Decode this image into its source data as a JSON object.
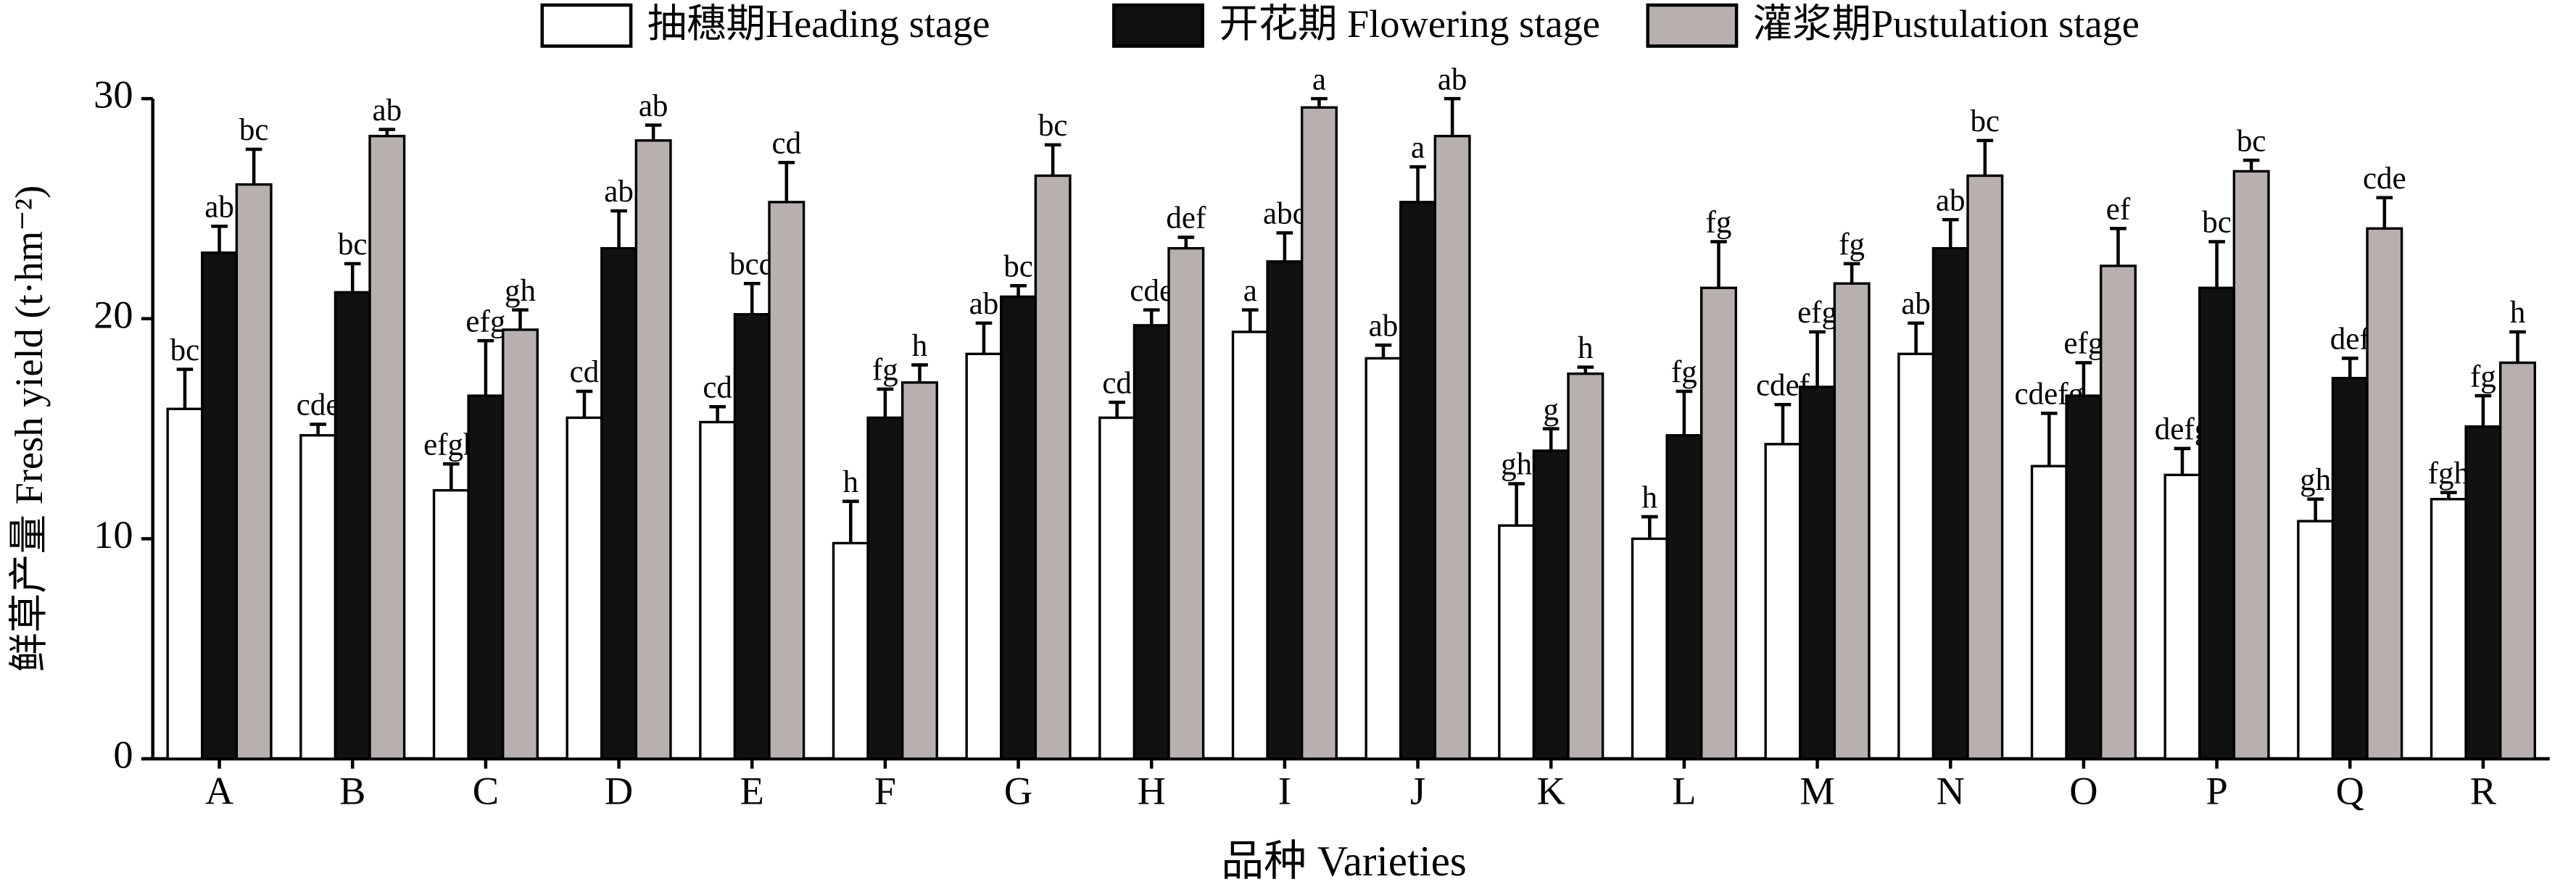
{
  "chart_data": {
    "type": "bar",
    "x_label": "品种 Varieties",
    "y_label": "鲜草产量 Fresh yield (t·hm⁻²)",
    "categories": [
      "A",
      "B",
      "C",
      "D",
      "E",
      "F",
      "G",
      "H",
      "I",
      "J",
      "K",
      "L",
      "M",
      "N",
      "O",
      "P",
      "Q",
      "R"
    ],
    "ylim": [
      0,
      30
    ],
    "yticks": [
      0,
      10,
      20,
      30
    ],
    "grid": false,
    "legend": "top",
    "series": [
      {
        "name": "抽穗期Heading stage",
        "color": "#ffffff",
        "values": [
          15.9,
          14.7,
          12.2,
          15.5,
          15.3,
          9.8,
          18.4,
          15.5,
          19.4,
          18.2,
          10.6,
          10.0,
          14.3,
          18.4,
          13.3,
          12.9,
          10.8,
          11.8
        ],
        "errors": [
          1.8,
          0.5,
          1.2,
          1.2,
          0.7,
          1.9,
          1.4,
          0.7,
          1.0,
          0.6,
          1.9,
          1.0,
          1.8,
          1.4,
          2.4,
          1.2,
          1.0,
          0.3
        ],
        "letters": [
          "bc",
          "cde",
          "efgh",
          "cd",
          "cd",
          "h",
          "ab",
          "cd",
          "a",
          "ab",
          "gh",
          "h",
          "cdef",
          "ab",
          "cdefg",
          "defg",
          "gh",
          "fgh"
        ]
      },
      {
        "name": "开花期 Flowering stage",
        "color": "#111111",
        "values": [
          23.0,
          21.2,
          16.5,
          23.2,
          20.2,
          15.5,
          21.0,
          19.7,
          22.6,
          25.3,
          14.0,
          14.7,
          16.9,
          23.2,
          16.5,
          21.4,
          17.3,
          15.1
        ],
        "errors": [
          1.2,
          1.3,
          2.5,
          1.7,
          1.4,
          1.3,
          0.5,
          0.7,
          1.3,
          1.6,
          1.0,
          2.0,
          2.5,
          1.3,
          1.5,
          2.1,
          0.9,
          1.4
        ],
        "letters": [
          "ab",
          "bc",
          "efg",
          "ab",
          "bcd",
          "fg",
          "bc",
          "cde",
          "abc",
          "a",
          "g",
          "fg",
          "efg",
          "ab",
          "efg",
          "bc",
          "def",
          "fg"
        ]
      },
      {
        "name": "灌浆期Pustulation stage",
        "color": "#b7b0ae",
        "values": [
          26.1,
          28.3,
          19.5,
          28.1,
          25.3,
          17.1,
          26.5,
          23.2,
          29.6,
          28.3,
          17.5,
          21.4,
          21.6,
          26.5,
          22.4,
          26.7,
          24.1,
          18.0
        ],
        "errors": [
          1.6,
          0.3,
          0.9,
          0.7,
          1.8,
          0.8,
          1.4,
          0.5,
          0.4,
          1.7,
          0.3,
          2.1,
          0.9,
          1.6,
          1.7,
          0.5,
          1.4,
          1.4
        ],
        "letters": [
          "bc",
          "ab",
          "gh",
          "ab",
          "cd",
          "h",
          "bc",
          "def",
          "a",
          "ab",
          "h",
          "fg",
          "fg",
          "bc",
          "ef",
          "bc",
          "cde",
          "h"
        ]
      }
    ]
  }
}
